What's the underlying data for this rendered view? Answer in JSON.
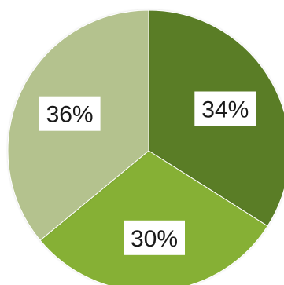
{
  "chart_data": {
    "type": "pie",
    "title": "",
    "slices": [
      {
        "label": "34%",
        "value": 34,
        "color": "#5a7d28"
      },
      {
        "label": "30%",
        "value": 30,
        "color": "#86b034"
      },
      {
        "label": "36%",
        "value": 36,
        "color": "#b4c28e"
      }
    ],
    "legend": "none",
    "data_labels": "inside"
  }
}
